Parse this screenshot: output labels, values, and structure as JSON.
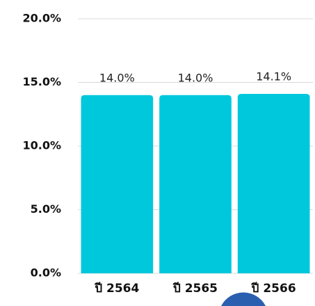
{
  "chart_data": {
    "type": "bar",
    "categories": [
      "ปี 2564",
      "ปี 2565",
      "ปี 2566"
    ],
    "values": [
      14.0,
      14.0,
      14.1
    ],
    "value_labels": [
      "14.0%",
      "14.0%",
      "14.1%"
    ],
    "color": "#00c8dc",
    "ylim": [
      0,
      20
    ],
    "yticks": [
      {
        "value": 0,
        "label": "0.0%"
      },
      {
        "value": 5,
        "label": "5.0%"
      },
      {
        "value": 10,
        "label": "10.0%"
      },
      {
        "value": 15,
        "label": "15.0%"
      },
      {
        "value": 20,
        "label": "20.0%"
      }
    ],
    "grid": true
  }
}
